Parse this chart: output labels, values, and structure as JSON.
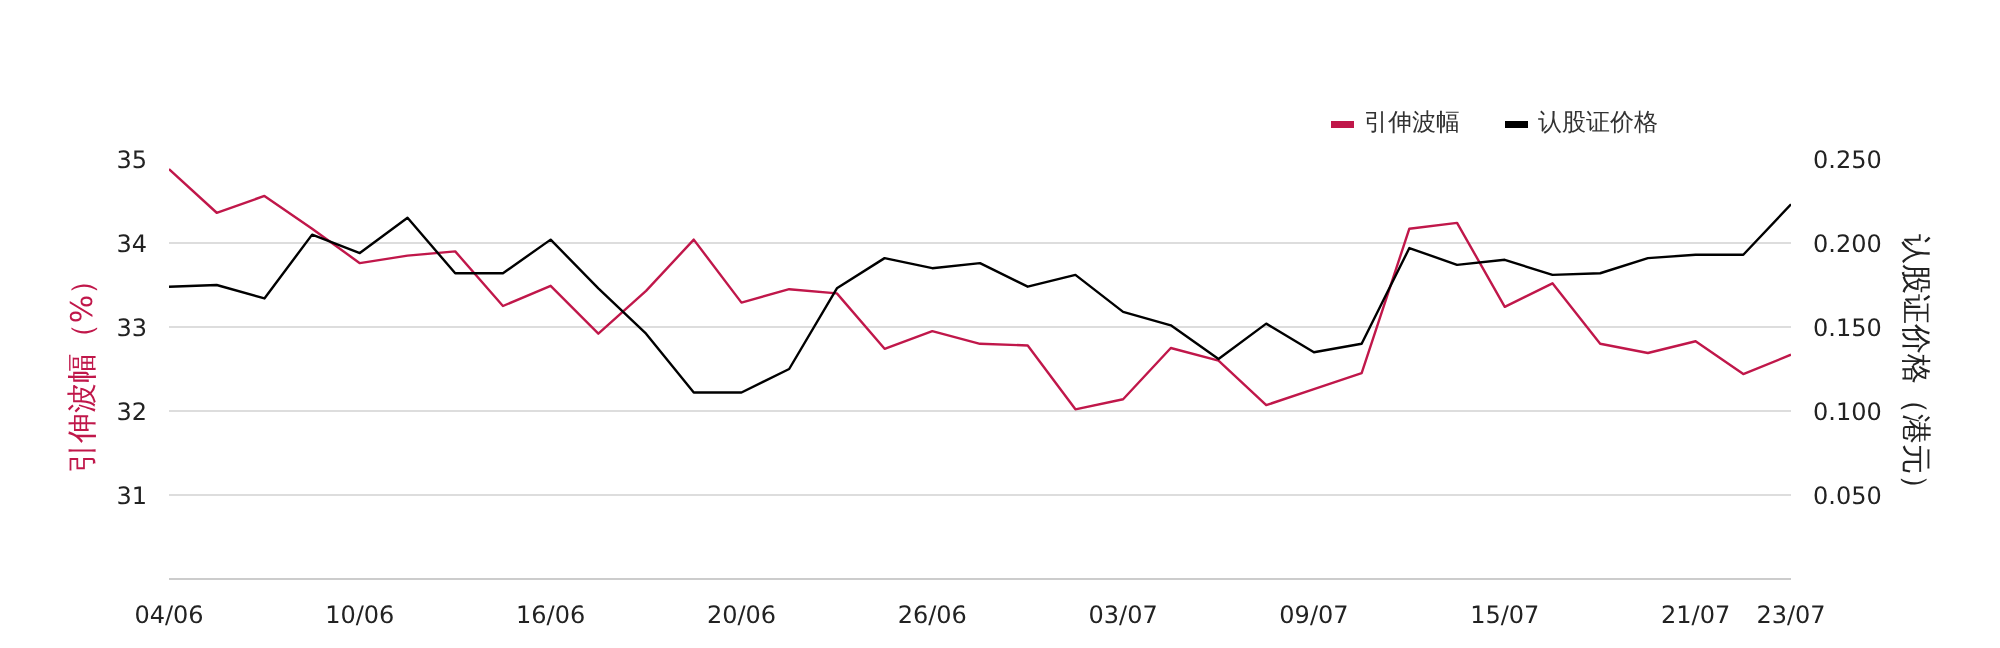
{
  "chart_data": {
    "type": "line",
    "categories": [
      "04/06",
      null,
      null,
      null,
      "10/06",
      null,
      null,
      null,
      "16/06",
      null,
      null,
      null,
      "20/06",
      null,
      null,
      null,
      "26/06",
      null,
      null,
      null,
      "03/07",
      null,
      null,
      null,
      "09/07",
      null,
      null,
      null,
      "15/07",
      null,
      null,
      null,
      "21/07",
      null,
      "23/07"
    ],
    "series": [
      {
        "name": "引伸波幅",
        "color": "#c0174a",
        "values": [
          34.88,
          34.36,
          34.56,
          34.17,
          33.76,
          33.85,
          33.9,
          33.25,
          33.49,
          32.92,
          33.43,
          34.04,
          33.29,
          33.45,
          33.4,
          32.74,
          32.95,
          32.8,
          32.78,
          32.02,
          32.14,
          32.75,
          32.6,
          32.07,
          32.26,
          32.45,
          34.17,
          34.24,
          33.24,
          33.52,
          32.8,
          32.69,
          32.83,
          32.44,
          32.67
        ]
      },
      {
        "name": "认股证价格",
        "color": "#000000",
        "axis": "y2",
        "values": [
          0.174,
          0.175,
          0.167,
          0.205,
          0.194,
          0.215,
          0.182,
          0.182,
          0.202,
          0.173,
          0.146,
          0.111,
          0.111,
          0.125,
          0.173,
          0.191,
          0.185,
          0.188,
          0.174,
          0.181,
          0.159,
          0.151,
          0.131,
          0.152,
          0.135,
          0.14,
          0.197,
          0.187,
          0.19,
          0.181,
          0.182,
          0.191,
          0.193,
          0.193,
          0.223
        ]
      }
    ],
    "ylabel": "引伸波幅（%）",
    "y2label": "认股证价格（港元）",
    "ylim": [
      30,
      35
    ],
    "yticks": [
      31,
      32,
      33,
      34,
      35
    ],
    "y2lim": [
      0,
      0.25
    ],
    "y2ticks": [
      {
        "value": 0.05,
        "label": "0.050"
      },
      {
        "value": 0.1,
        "label": "0.100"
      },
      {
        "value": 0.15,
        "label": "0.150"
      },
      {
        "value": 0.2,
        "label": "0.200"
      },
      {
        "value": 0.25,
        "label": "0.250"
      }
    ],
    "grid": "y",
    "legend": "top right",
    "marker": "none",
    "line_style": "solid"
  }
}
